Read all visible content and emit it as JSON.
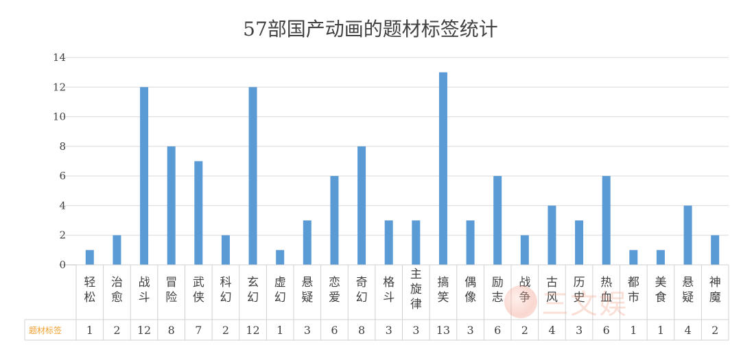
{
  "chart_data": {
    "type": "bar",
    "title": "57部国产动画的题材标签统计",
    "categories": [
      "轻松",
      "治愈",
      "战斗",
      "冒险",
      "武侠",
      "科幻",
      "玄幻",
      "虚幻",
      "悬疑",
      "恋爱",
      "奇幻",
      "格斗",
      "主旋律",
      "搞笑",
      "偶像",
      "励志",
      "战争",
      "古风",
      "历史",
      "热血",
      "都市",
      "美食",
      "悬疑",
      "神魔"
    ],
    "series": [
      {
        "name": "题材标签",
        "values": [
          1,
          2,
          12,
          8,
          7,
          2,
          12,
          1,
          3,
          6,
          8,
          3,
          3,
          13,
          3,
          6,
          2,
          4,
          3,
          6,
          1,
          1,
          4,
          2
        ]
      }
    ],
    "y_ticks": [
      "0",
      "2",
      "4",
      "6",
      "8",
      "10",
      "12",
      "14"
    ],
    "ylim": [
      0,
      14
    ],
    "grid": true,
    "data_table": true,
    "colors": {
      "bar": "#5b9bd5",
      "grid": "#d9d9d9",
      "series_label": "#f0a030",
      "text": "#404040"
    }
  },
  "watermark": {
    "text": "三文娱",
    "logo_icon": "swoosh-logo"
  }
}
